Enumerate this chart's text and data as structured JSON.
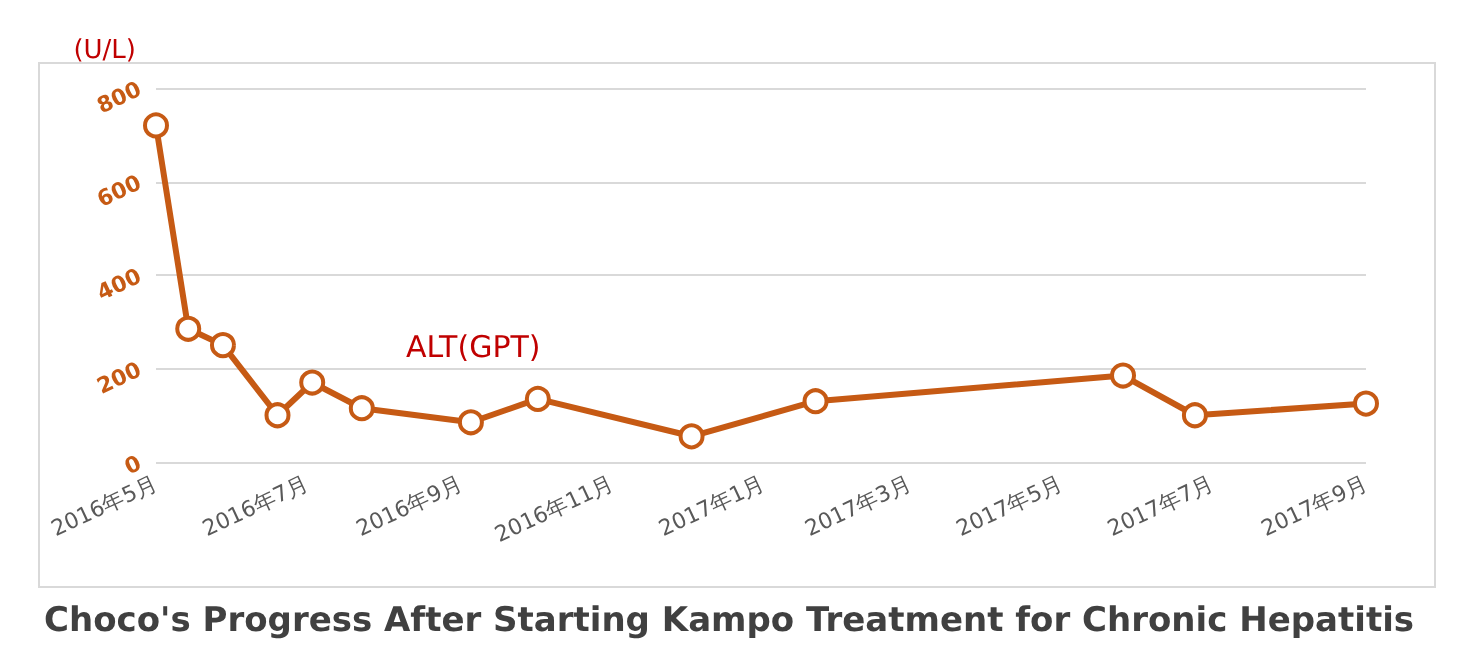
{
  "chart_data": {
    "type": "line",
    "title": "Choco's Progress After Starting Kampo Treatment for Chronic Hepatitis",
    "ylabel": "(U/L)",
    "x": [
      "2016-05-01",
      "2016-05-14",
      "2016-05-28",
      "2016-06-19",
      "2016-07-03",
      "2016-07-23",
      "2016-09-05",
      "2016-10-02",
      "2016-12-03",
      "2017-01-22",
      "2017-05-26",
      "2017-06-24",
      "2017-09-01"
    ],
    "series": [
      {
        "name": "ALT(GPT)",
        "color": "#c65a14",
        "values": [
          720,
          285,
          250,
          100,
          170,
          115,
          85,
          135,
          55,
          130,
          185,
          100,
          125
        ]
      }
    ],
    "xlim": [
      "2016-05",
      "2017-09"
    ],
    "xticks": [
      {
        "value": "2016-05",
        "label": "2016年5月"
      },
      {
        "value": "2016-07",
        "label": "2016年7月"
      },
      {
        "value": "2016-09",
        "label": "2016年9月"
      },
      {
        "value": "2016-11",
        "label": "2016年11月"
      },
      {
        "value": "2017-01",
        "label": "2017年1月"
      },
      {
        "value": "2017-03",
        "label": "2017年3月"
      },
      {
        "value": "2017-05",
        "label": "2017年5月"
      },
      {
        "value": "2017-07",
        "label": "2017年7月"
      },
      {
        "value": "2017-09",
        "label": "2017年9月"
      }
    ],
    "ylim": [
      0,
      800
    ],
    "yticks": [
      0,
      200,
      400,
      600,
      800
    ],
    "grid": "y",
    "legend": false,
    "marker": "circle",
    "line_style": "solid"
  }
}
